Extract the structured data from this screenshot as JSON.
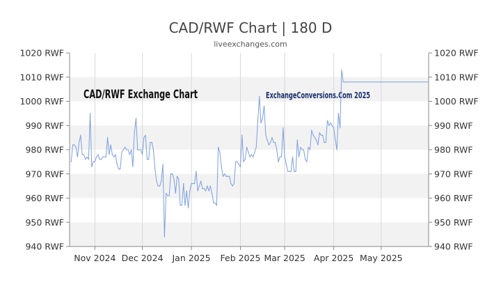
{
  "header": {
    "title": "CAD/RWF Chart | 180 D",
    "subtitle": "liveexchanges.com"
  },
  "watermarks": {
    "left": "CAD/RWF Exchange Chart",
    "right": "ExchangeConversions.Com 2025"
  },
  "colors": {
    "line": "#7b9ee0",
    "band": "#f2f2f2",
    "grid": "#d7d7d7",
    "axis": "#888888"
  },
  "chart_data": {
    "type": "line",
    "title": "CAD/RWF Chart | 180 D",
    "xlabel": "",
    "ylabel": "",
    "ylim": [
      940,
      1020
    ],
    "ytick_values": [
      940,
      950,
      960,
      970,
      980,
      990,
      1000,
      1010,
      1020
    ],
    "ytick_labels": [
      "940 RWF",
      "950 RWF",
      "960 RWF",
      "970 RWF",
      "980 RWF",
      "990 RWF",
      "1000 RWF",
      "1010 RWF",
      "1020 RWF"
    ],
    "xlim": [
      "2024-10-16",
      "2025-05-31"
    ],
    "xtick_dates": [
      "2024-11-01",
      "2024-12-01",
      "2025-01-01",
      "2025-02-01",
      "2025-03-01",
      "2025-04-01",
      "2025-05-01"
    ],
    "xtick_labels": [
      "Nov 2024",
      "Dec 2024",
      "Jan 2025",
      "Feb 2025",
      "Mar 2025",
      "Apr 2025",
      "May 2025"
    ],
    "grid": true,
    "legend": "none",
    "series": [
      {
        "x": [
          "2024-10-17",
          "2024-10-18",
          "2024-10-19",
          "2024-10-20",
          "2024-10-21",
          "2024-10-22",
          "2024-10-23",
          "2024-10-24",
          "2024-10-25",
          "2024-10-26",
          "2024-10-27",
          "2024-10-28",
          "2024-10-29",
          "2024-10-30",
          "2024-10-31",
          "2024-11-01",
          "2024-11-02",
          "2024-11-03",
          "2024-11-04",
          "2024-11-05",
          "2024-11-06",
          "2024-11-07",
          "2024-11-08",
          "2024-11-09",
          "2024-11-10",
          "2024-11-11",
          "2024-11-12",
          "2024-11-13",
          "2024-11-14",
          "2024-11-15",
          "2024-11-16",
          "2024-11-17",
          "2024-11-18",
          "2024-11-19",
          "2024-11-20",
          "2024-11-21",
          "2024-11-22",
          "2024-11-23",
          "2024-11-24",
          "2024-11-25",
          "2024-11-26",
          "2024-11-27",
          "2024-11-28",
          "2024-11-29",
          "2024-11-30",
          "2024-12-01",
          "2024-12-02",
          "2024-12-03",
          "2024-12-04",
          "2024-12-05",
          "2024-12-06",
          "2024-12-07",
          "2024-12-08",
          "2024-12-09",
          "2024-12-10",
          "2024-12-11",
          "2024-12-12",
          "2024-12-13",
          "2024-12-14",
          "2024-12-15",
          "2024-12-16",
          "2024-12-17",
          "2024-12-18",
          "2024-12-19",
          "2024-12-20",
          "2024-12-21",
          "2024-12-22",
          "2024-12-23",
          "2024-12-24",
          "2024-12-25",
          "2024-12-26",
          "2024-12-27",
          "2024-12-28",
          "2024-12-29",
          "2024-12-30",
          "2024-12-31",
          "2025-01-01",
          "2025-01-02",
          "2025-01-03",
          "2025-01-04",
          "2025-01-05",
          "2025-01-06",
          "2025-01-07",
          "2025-01-08",
          "2025-01-09",
          "2025-01-10",
          "2025-01-11",
          "2025-01-12",
          "2025-01-13",
          "2025-01-14",
          "2025-01-15",
          "2025-01-16",
          "2025-01-17",
          "2025-01-18",
          "2025-01-19",
          "2025-01-20",
          "2025-01-21",
          "2025-01-22",
          "2025-01-23",
          "2025-01-24",
          "2025-01-25",
          "2025-01-26",
          "2025-01-27",
          "2025-01-28",
          "2025-01-29",
          "2025-01-30",
          "2025-01-31",
          "2025-02-01",
          "2025-02-02",
          "2025-02-03",
          "2025-02-04",
          "2025-02-05",
          "2025-02-06",
          "2025-02-07",
          "2025-02-08",
          "2025-02-09",
          "2025-02-10",
          "2025-02-11",
          "2025-02-12",
          "2025-02-13",
          "2025-02-14",
          "2025-02-15",
          "2025-02-16",
          "2025-02-17",
          "2025-02-18",
          "2025-02-19",
          "2025-02-20",
          "2025-02-21",
          "2025-02-22",
          "2025-02-23",
          "2025-02-24",
          "2025-02-25",
          "2025-02-26",
          "2025-02-27",
          "2025-02-28",
          "2025-03-01",
          "2025-03-02",
          "2025-03-03",
          "2025-03-04",
          "2025-03-05",
          "2025-03-06",
          "2025-03-07",
          "2025-03-08",
          "2025-03-09",
          "2025-03-10",
          "2025-03-11",
          "2025-03-12",
          "2025-03-13",
          "2025-03-14",
          "2025-03-15",
          "2025-03-16",
          "2025-03-17",
          "2025-03-18",
          "2025-03-19",
          "2025-03-20",
          "2025-03-21",
          "2025-03-22",
          "2025-03-23",
          "2025-03-24",
          "2025-03-25",
          "2025-03-26",
          "2025-03-27",
          "2025-03-28",
          "2025-03-29",
          "2025-03-30",
          "2025-03-31",
          "2025-04-01",
          "2025-04-02",
          "2025-04-03",
          "2025-04-04",
          "2025-04-05",
          "2025-04-06",
          "2025-04-07",
          "2025-04-08",
          "2025-04-09",
          "2025-04-30",
          "2025-05-31"
        ],
        "values": [
          975,
          982,
          982,
          981,
          977,
          983,
          986,
          978,
          978,
          976,
          977,
          976,
          995,
          973,
          975,
          975,
          977,
          978,
          976,
          976,
          977,
          977,
          977,
          985,
          978,
          982,
          978,
          977,
          978,
          974,
          972,
          972,
          979,
          980,
          981,
          980,
          980,
          978,
          980,
          973,
          987,
          993,
          980,
          980,
          980,
          978,
          985,
          986,
          976,
          976,
          983,
          983,
          980,
          972,
          967,
          965,
          965,
          967,
          974,
          944,
          962,
          961,
          961,
          970,
          970,
          968,
          962,
          969,
          968,
          957,
          957,
          966,
          957,
          963,
          956,
          963,
          966,
          966,
          966,
          971,
          963,
          965,
          967,
          964,
          964,
          963,
          965,
          963,
          965,
          962,
          958,
          958,
          957,
          981,
          979,
          973,
          969,
          970,
          969,
          969,
          969,
          966,
          965,
          966,
          975,
          975,
          974,
          973,
          986,
          975,
          976,
          981,
          979,
          977,
          978,
          977,
          979,
          981,
          992,
          1002,
          991,
          993,
          998,
          986,
          984,
          982,
          983,
          985,
          983,
          983,
          980,
          975,
          977,
          977,
          989,
          977,
          974,
          971,
          971,
          971,
          977,
          971,
          971,
          984,
          977,
          981,
          980,
          980,
          976,
          975,
          981,
          980,
          988,
          986,
          985,
          984,
          982,
          987,
          986,
          986,
          983,
          983,
          992,
          990,
          991,
          990,
          989,
          984,
          980,
          995,
          989,
          1013,
          1008,
          1008,
          1008,
          1008,
          1008
        ]
      }
    ]
  }
}
